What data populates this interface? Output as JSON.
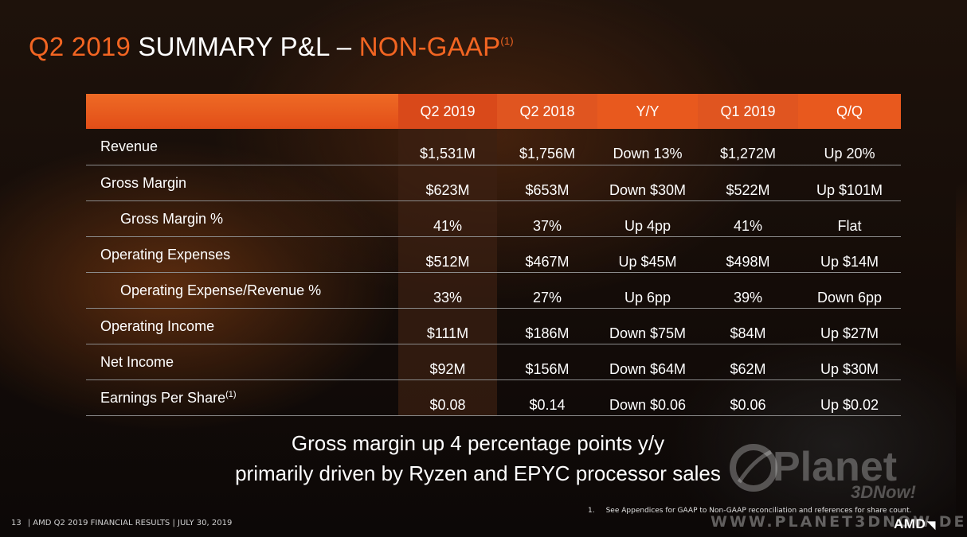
{
  "title": {
    "quarter": "Q2 2019",
    "main": "SUMMARY P&L –",
    "highlight": "NON-GAAP",
    "note_marker": "(1)"
  },
  "table": {
    "headers": [
      "",
      "Q2 2019",
      "Q2 2018",
      "Y/Y",
      "Q1 2019",
      "Q/Q"
    ],
    "rows": [
      {
        "label": "Revenue",
        "indent": false,
        "values": [
          "$1,531M",
          "$1,756M",
          "Down 13%",
          "$1,272M",
          "Up 20%"
        ]
      },
      {
        "label": "Gross Margin",
        "indent": false,
        "values": [
          "$623M",
          "$653M",
          "Down $30M",
          "$522M",
          "Up $101M"
        ]
      },
      {
        "label": "Gross Margin %",
        "indent": true,
        "values": [
          "41%",
          "37%",
          "Up 4pp",
          "41%",
          "Flat"
        ]
      },
      {
        "label": "Operating Expenses",
        "indent": false,
        "values": [
          "$512M",
          "$467M",
          "Up $45M",
          "$498M",
          "Up $14M"
        ]
      },
      {
        "label": "Operating Expense/Revenue %",
        "indent": true,
        "values": [
          "33%",
          "27%",
          "Up 6pp",
          "39%",
          "Down 6pp"
        ]
      },
      {
        "label": "Operating Income",
        "indent": false,
        "values": [
          "$111M",
          "$186M",
          "Down $75M",
          "$84M",
          "Up $27M"
        ]
      },
      {
        "label": "Net Income",
        "indent": false,
        "values": [
          "$92M",
          "$156M",
          "Down $64M",
          "$62M",
          "Up $30M"
        ]
      },
      {
        "label": "Earnings Per Share",
        "label_marker": "(1)",
        "indent": false,
        "values": [
          "$0.08",
          "$0.14",
          "Down $0.06",
          "$0.06",
          "Up $0.02"
        ]
      }
    ]
  },
  "callout": {
    "line1": "Gross margin up 4 percentage points y/y",
    "line2": "primarily driven by Ryzen and EPYC processor sales"
  },
  "footnote": {
    "number": "1.",
    "text": "See Appendices for GAAP to Non-GAAP reconciliation and references for  share count."
  },
  "footer": {
    "page": "13",
    "text": "| AMD Q2 2019 FINANCIAL RESULTS | JULY 30, 2019"
  },
  "watermark": {
    "brand": "Planet",
    "tagline": "3DNow!",
    "url": "WWW.PLANET3DNOW.DE"
  },
  "logo": {
    "text": "AMD",
    "arrow": "◥"
  },
  "colors": {
    "accent": "#f26522",
    "header_bar": "#e8591e",
    "background": "#140c08"
  }
}
